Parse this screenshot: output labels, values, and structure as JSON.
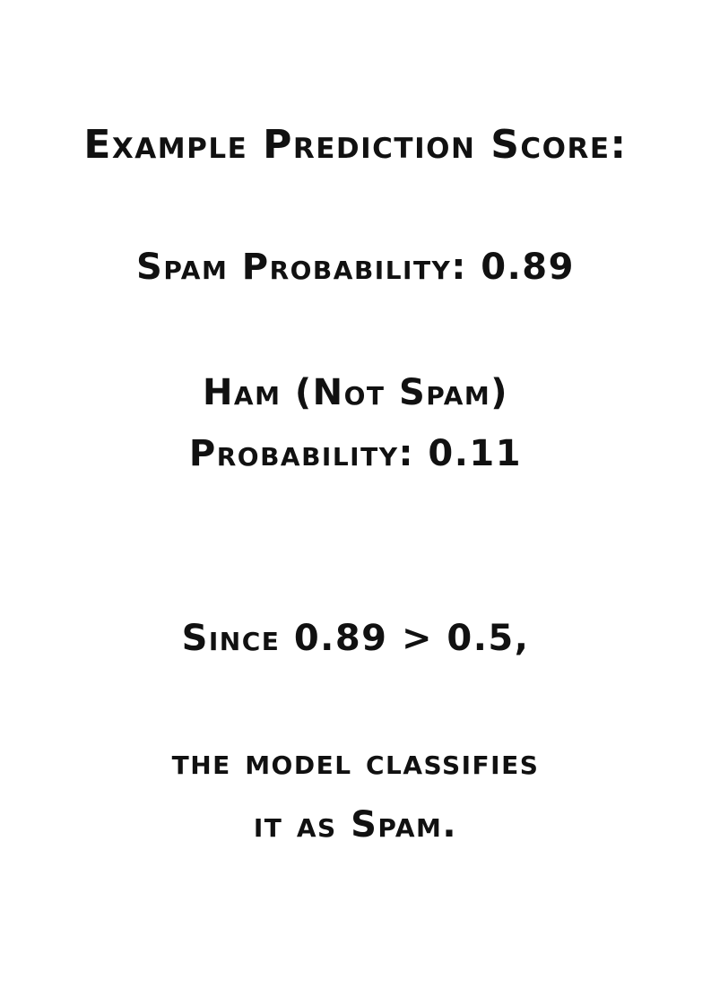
{
  "heading": "Example Prediction Score:",
  "spam_probability": "Spam Probability: 0.89",
  "ham_probability": {
    "line1": "Ham (Not Spam)",
    "line2": "Probability: 0.11"
  },
  "comparison": "Since 0.89 > 0.5,",
  "conclusion": {
    "line1": "the model classifies",
    "line2": "it as Spam."
  }
}
